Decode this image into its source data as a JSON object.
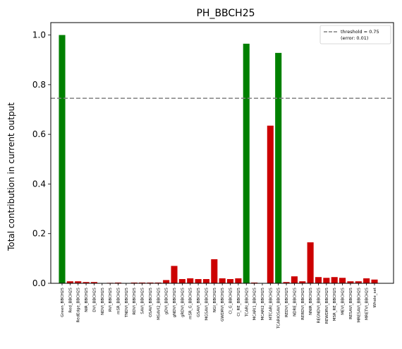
{
  "chart_data": {
    "type": "bar",
    "title": "PH_BBCH25",
    "xlabel": "",
    "ylabel": "Total contribution in current output",
    "ylim": [
      0,
      1.05
    ],
    "yticks": [
      "0.0",
      "0.2",
      "0.4",
      "0.6",
      "0.8",
      "1.0"
    ],
    "ytick_values": [
      0,
      0.2,
      0.4,
      0.6,
      0.8,
      1.0
    ],
    "grid": false,
    "legend_position": "top-right",
    "threshold": {
      "value": 0.745,
      "label_line1": "threshold = 0.75",
      "label_line2": "(error: 0.01)",
      "color": "#808080"
    },
    "colors": {
      "above": "#008000",
      "below": "#cc0000"
    },
    "categories": [
      "Green_BBCH25",
      "Red_BBCH25",
      "RedEdge_BBCH25",
      "NIR_BBCH25",
      "DVI_BBCH25",
      "NDVI_BBCH25",
      "RVI_BBCH25",
      "mSR_BBCH25",
      "TNDVI_BBCH25",
      "RDVI_BBCH25",
      "SAVI_BBCH25",
      "OSAVI_BBCH25",
      "MSAVI2_BBCH25",
      "gDVI_BBCH25",
      "gNDVI_BBCH25",
      "gRDVI_BBCH25",
      "mSR_G_BBCH25",
      "GSAVI_BBCH25",
      "MGSAVI_BBCH25",
      "NGI_BBCH25",
      "GWDRVI_BBCH25",
      "CI_G_BBCH25",
      "CI_RE_BBCH25",
      "TCARI_BBCH25",
      "MCARI1_BBCH25",
      "MCARI2_BBCH25",
      "MTCARI_BBCH25",
      "TCARIOSAVI_BBCH25",
      "REDVI_BBCH25",
      "NDRE_BBCH25",
      "RERDVI_BBCH25",
      "NNIR_BBCH25",
      "REGNDVI_BBCH25",
      "REWDRVI_BBCH25",
      "MSR_RE_BBCH25",
      "MEVI_BBCH25",
      "RESAVI_BBCH25",
      "MRESAVI_BBCH25",
      "MRETVI_BBCH25",
      "Whole_set"
    ],
    "values": [
      1.0,
      0.008,
      0.008,
      0.005,
      0.005,
      0.001,
      0.002,
      0.003,
      0.001,
      0.003,
      0.003,
      0.003,
      0.003,
      0.013,
      0.07,
      0.017,
      0.02,
      0.017,
      0.017,
      0.097,
      0.02,
      0.017,
      0.02,
      0.965,
      0.003,
      0.001,
      0.635,
      0.928,
      0.005,
      0.028,
      0.008,
      0.165,
      0.025,
      0.022,
      0.025,
      0.022,
      0.008,
      0.008,
      0.02,
      0.015
    ],
    "bar_colors": [
      "green",
      "red",
      "red",
      "red",
      "red",
      "red",
      "red",
      "red",
      "red",
      "red",
      "red",
      "red",
      "red",
      "red",
      "red",
      "red",
      "red",
      "red",
      "red",
      "red",
      "red",
      "red",
      "red",
      "green",
      "red",
      "red",
      "red",
      "green",
      "red",
      "red",
      "red",
      "red",
      "red",
      "red",
      "red",
      "red",
      "red",
      "red",
      "red",
      "red"
    ]
  }
}
